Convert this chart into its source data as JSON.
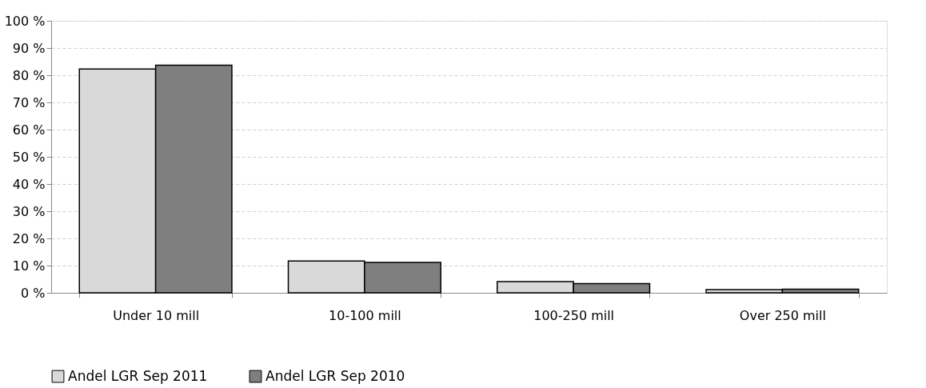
{
  "chart_data": {
    "type": "bar",
    "categories": [
      "Under 10 mill",
      "10-100 mill",
      "100-250 mill",
      "Over 250 mill"
    ],
    "series": [
      {
        "name": "Andel LGR Sep 2011",
        "color": "#d9d9d9",
        "values": [
          82.3,
          11.7,
          4.1,
          1.2
        ]
      },
      {
        "name": "Andel LGR Sep 2010",
        "color": "#7f7f7f",
        "values": [
          83.7,
          11.2,
          3.4,
          1.3
        ]
      }
    ],
    "ylim": [
      0,
      100
    ],
    "yticks": [
      {
        "value": 0,
        "label": "0 %"
      },
      {
        "value": 10,
        "label": "10 %"
      },
      {
        "value": 20,
        "label": "20 %"
      },
      {
        "value": 30,
        "label": "30 %"
      },
      {
        "value": 40,
        "label": "40 %"
      },
      {
        "value": 50,
        "label": "50 %"
      },
      {
        "value": 60,
        "label": "60 %"
      },
      {
        "value": 70,
        "label": "70 %"
      },
      {
        "value": 80,
        "label": "80 %"
      },
      {
        "value": 90,
        "label": "90 %"
      },
      {
        "value": 100,
        "label": "100 %"
      }
    ],
    "grid": "y",
    "legend": "bottom"
  }
}
